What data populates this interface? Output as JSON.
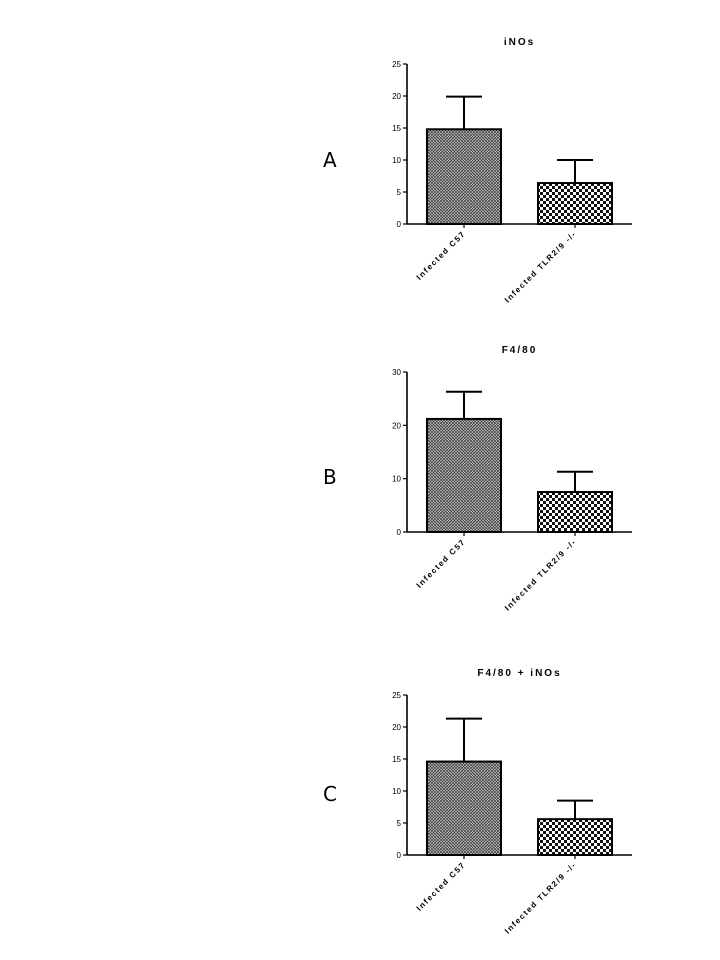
{
  "panels": [
    {
      "letter": "A"
    },
    {
      "letter": "B"
    },
    {
      "letter": "C"
    }
  ],
  "chart_data": [
    {
      "type": "bar",
      "title": "iNOs",
      "categories": [
        "Infected C57",
        "Infected TLR2/9 -/-"
      ],
      "values": [
        14.8,
        6.4
      ],
      "errors": [
        5.1,
        3.6
      ],
      "ylim": [
        0,
        25
      ],
      "yticks": [
        0,
        5,
        10,
        15,
        20,
        25
      ],
      "xlabel": "",
      "ylabel": "",
      "patterns": [
        "crosshatch",
        "checker"
      ],
      "grid": false
    },
    {
      "type": "bar",
      "title": "F4/80",
      "categories": [
        "Infected C57",
        "Infected TLR2/9 -/-"
      ],
      "values": [
        21.2,
        7.5
      ],
      "errors": [
        5.1,
        3.8
      ],
      "ylim": [
        0,
        30
      ],
      "yticks": [
        0,
        10,
        20,
        30
      ],
      "xlabel": "",
      "ylabel": "",
      "patterns": [
        "crosshatch",
        "checker"
      ],
      "grid": false
    },
    {
      "type": "bar",
      "title": "F4/80 + iNOs",
      "categories": [
        "Infected C57",
        "Infected TLR2/9 -/-"
      ],
      "values": [
        14.6,
        5.6
      ],
      "errors": [
        6.7,
        2.9
      ],
      "ylim": [
        0,
        25
      ],
      "yticks": [
        0,
        5,
        10,
        15,
        20,
        25
      ],
      "xlabel": "",
      "ylabel": "",
      "patterns": [
        "crosshatch",
        "checker"
      ],
      "grid": false
    }
  ]
}
